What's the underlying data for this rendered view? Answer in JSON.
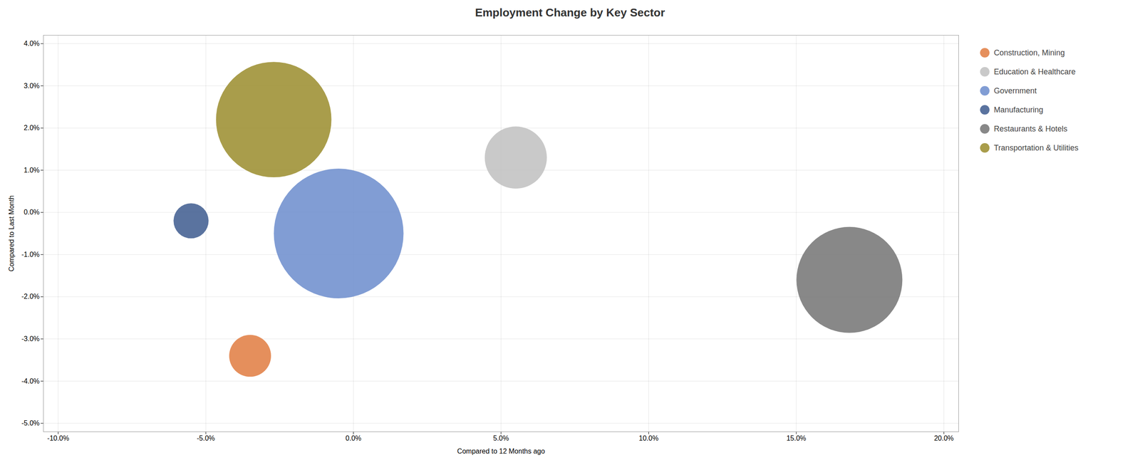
{
  "chart_data": {
    "type": "scatter",
    "title": "Employment Change by Key Sector",
    "xlabel": "Compared to 12 Months ago",
    "ylabel": "Compared to Last Month",
    "series": [
      {
        "name": "Construction, Mining",
        "color": "#e07b3f",
        "x": [
          -0.035
        ],
        "values": [
          -0.034
        ],
        "size": [
          5000
        ]
      },
      {
        "name": "Education & Healthcare",
        "color": "#c0c0c0",
        "x": [
          0.055
        ],
        "values": [
          0.013
        ],
        "size": [
          11000
        ]
      },
      {
        "name": "Government",
        "color": "#6b8ccc",
        "x": [
          -0.005
        ],
        "values": [
          -0.005
        ],
        "size": [
          48000
        ]
      },
      {
        "name": "Manufacturing",
        "color": "#3d5a8e",
        "x": [
          -0.055
        ],
        "values": [
          -0.002
        ],
        "size": [
          3500
        ]
      },
      {
        "name": "Restaurants & Hotels",
        "color": "#737373",
        "x": [
          0.168
        ],
        "values": [
          -0.016
        ],
        "size": [
          32000
        ]
      },
      {
        "name": "Transportation & Utilities",
        "color": "#9a8c2c",
        "x": [
          -0.027
        ],
        "values": [
          0.022
        ],
        "size": [
          38000
        ]
      }
    ],
    "xlim": [
      -0.105,
      0.205
    ],
    "ylim": [
      -0.052,
      0.042
    ],
    "xticks": [
      {
        "value": -0.1,
        "label": "-10.0%"
      },
      {
        "value": -0.05,
        "label": "-5.0%"
      },
      {
        "value": 0.0,
        "label": "0.0%"
      },
      {
        "value": 0.05,
        "label": "5.0%"
      },
      {
        "value": 0.1,
        "label": "10.0%"
      },
      {
        "value": 0.15,
        "label": "15.0%"
      },
      {
        "value": 0.2,
        "label": "20.0%"
      }
    ],
    "yticks": [
      {
        "value": -0.05,
        "label": "-5.0%"
      },
      {
        "value": -0.04,
        "label": "-4.0%"
      },
      {
        "value": -0.03,
        "label": "-3.0%"
      },
      {
        "value": -0.02,
        "label": "-2.0%"
      },
      {
        "value": -0.01,
        "label": "-1.0%"
      },
      {
        "value": 0.0,
        "label": "0.0%"
      },
      {
        "value": 0.01,
        "label": "1.0%"
      },
      {
        "value": 0.02,
        "label": "2.0%"
      },
      {
        "value": 0.03,
        "label": "3.0%"
      },
      {
        "value": 0.04,
        "label": "4.0%"
      }
    ],
    "grid": true,
    "legend": "right"
  }
}
